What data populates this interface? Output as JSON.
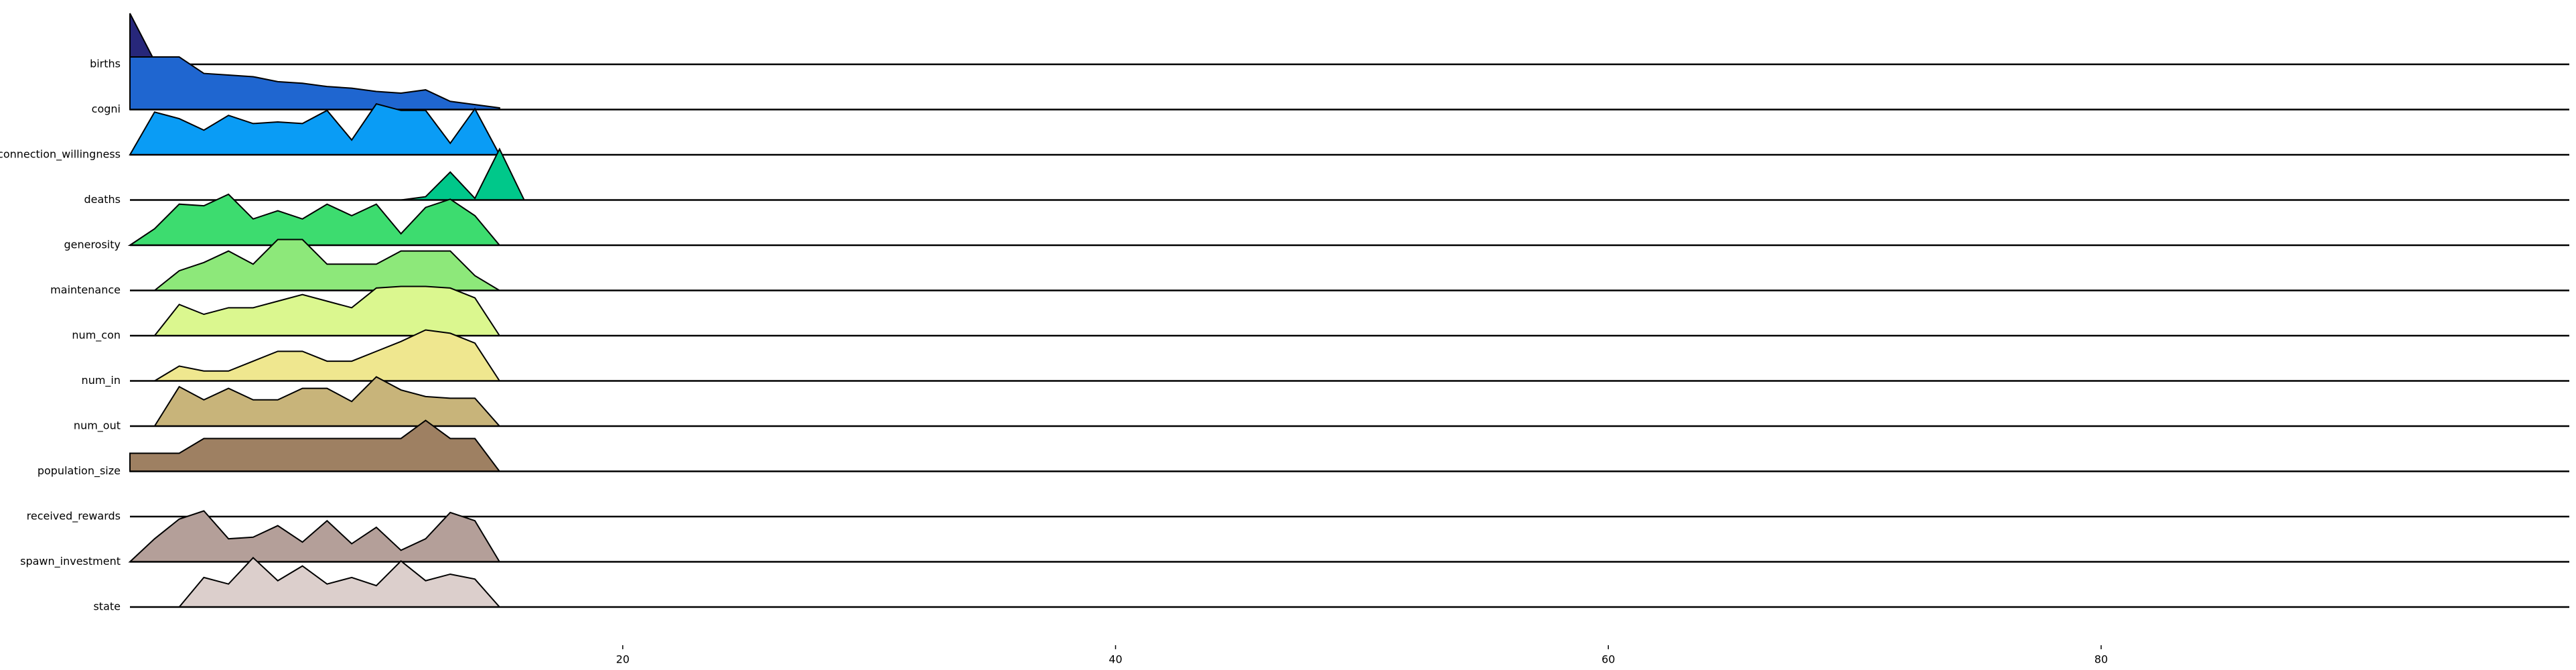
{
  "chart_data": {
    "type": "ridgeline",
    "xlim": [
      0,
      99
    ],
    "ylim": [
      0,
      31
    ],
    "xticks": [
      20,
      40,
      60,
      80
    ],
    "series": [
      {
        "name": "births",
        "color": "#27277a",
        "x": [
          0,
          1,
          2,
          3,
          4,
          5,
          6,
          7,
          8,
          9,
          10,
          11,
          12,
          13,
          14,
          15
        ],
        "values": [
          31,
          2,
          0,
          0,
          0,
          0,
          0,
          0,
          0,
          0,
          0,
          0,
          0,
          0,
          0,
          0
        ]
      },
      {
        "name": "cogni",
        "color": "#1f66d0",
        "x": [
          0,
          1,
          2,
          3,
          4,
          5,
          6,
          7,
          8,
          9,
          10,
          11,
          12,
          13,
          14,
          15
        ],
        "values": [
          32,
          32,
          32,
          22,
          21,
          20,
          17,
          16,
          14,
          13,
          11,
          10,
          12,
          5,
          3,
          1
        ]
      },
      {
        "name": "connection_willingness",
        "color": "#0a9cf5",
        "x": [
          0,
          1,
          2,
          3,
          4,
          5,
          6,
          7,
          8,
          9,
          10,
          11,
          12,
          13,
          14,
          15
        ],
        "values": [
          0,
          26,
          22,
          15,
          24,
          19,
          20,
          19,
          27,
          9,
          31,
          27,
          27,
          7,
          28,
          0
        ]
      },
      {
        "name": "deaths",
        "color": "#00c88a",
        "x": [
          0,
          1,
          2,
          3,
          4,
          5,
          6,
          7,
          8,
          9,
          10,
          11,
          12,
          13,
          14,
          15,
          16
        ],
        "values": [
          0,
          0,
          0,
          0,
          0,
          0,
          0,
          0,
          0,
          0,
          0,
          0,
          2,
          17,
          1,
          31,
          0
        ]
      },
      {
        "name": "generosity",
        "color": "#3ddc6f",
        "x": [
          0,
          1,
          2,
          3,
          4,
          5,
          6,
          7,
          8,
          9,
          10,
          11,
          12,
          13,
          14,
          15
        ],
        "values": [
          0,
          10,
          25,
          24,
          31,
          16,
          21,
          16,
          25,
          18,
          25,
          7,
          23,
          28,
          18,
          0
        ]
      },
      {
        "name": "maintenance",
        "color": "#8de87a",
        "x": [
          0,
          1,
          2,
          3,
          4,
          5,
          6,
          7,
          8,
          9,
          10,
          11,
          12,
          13,
          14,
          15
        ],
        "values": [
          0,
          0,
          12,
          17,
          24,
          16,
          31,
          31,
          16,
          16,
          16,
          24,
          24,
          24,
          9,
          0
        ]
      },
      {
        "name": "num_con",
        "color": "#dbf78f",
        "x": [
          0,
          1,
          2,
          3,
          4,
          5,
          6,
          7,
          8,
          9,
          10,
          11,
          12,
          13,
          14,
          15
        ],
        "values": [
          0,
          0,
          19,
          13,
          17,
          17,
          21,
          25,
          21,
          17,
          29,
          30,
          30,
          29,
          23,
          0
        ]
      },
      {
        "name": "num_in",
        "color": "#efe78f",
        "x": [
          0,
          1,
          2,
          3,
          4,
          5,
          6,
          7,
          8,
          9,
          10,
          11,
          12,
          13,
          14,
          15
        ],
        "values": [
          0,
          0,
          9,
          6,
          6,
          12,
          18,
          18,
          12,
          12,
          18,
          24,
          31,
          29,
          23,
          0
        ]
      },
      {
        "name": "num_out",
        "color": "#c8b47a",
        "x": [
          0,
          1,
          2,
          3,
          4,
          5,
          6,
          7,
          8,
          9,
          10,
          11,
          12,
          13,
          14,
          15
        ],
        "values": [
          0,
          0,
          24,
          16,
          23,
          16,
          16,
          23,
          23,
          15,
          30,
          22,
          18,
          17,
          17,
          0
        ]
      },
      {
        "name": "population_size",
        "color": "#9e8062",
        "x": [
          0,
          1,
          2,
          3,
          4,
          5,
          6,
          7,
          8,
          9,
          10,
          11,
          12,
          13,
          14,
          15
        ],
        "values": [
          11,
          11,
          11,
          20,
          20,
          20,
          20,
          20,
          20,
          20,
          20,
          20,
          31,
          20,
          20,
          0
        ]
      },
      {
        "name": "received_rewards",
        "color": "#a89088",
        "x": [
          0,
          1,
          2,
          3,
          4,
          5,
          6,
          7,
          8,
          9,
          10,
          11,
          12,
          13,
          14,
          15
        ],
        "values": [
          0,
          0,
          0,
          0,
          0,
          0,
          0,
          0,
          0,
          0,
          0,
          0,
          0,
          0,
          0,
          0
        ]
      },
      {
        "name": "spawn_investment",
        "color": "#b49f99",
        "x": [
          0,
          1,
          2,
          3,
          4,
          5,
          6,
          7,
          8,
          9,
          10,
          11,
          12,
          13,
          14,
          15
        ],
        "values": [
          0,
          14,
          26,
          31,
          14,
          15,
          22,
          12,
          25,
          11,
          21,
          7,
          14,
          30,
          25,
          0
        ]
      },
      {
        "name": "state",
        "color": "#dccfcc",
        "x": [
          0,
          1,
          2,
          3,
          4,
          5,
          6,
          7,
          8,
          9,
          10,
          11,
          12,
          13,
          14,
          15
        ],
        "values": [
          0,
          0,
          0,
          18,
          14,
          30,
          16,
          25,
          14,
          18,
          13,
          28,
          16,
          20,
          17,
          0
        ]
      }
    ]
  }
}
